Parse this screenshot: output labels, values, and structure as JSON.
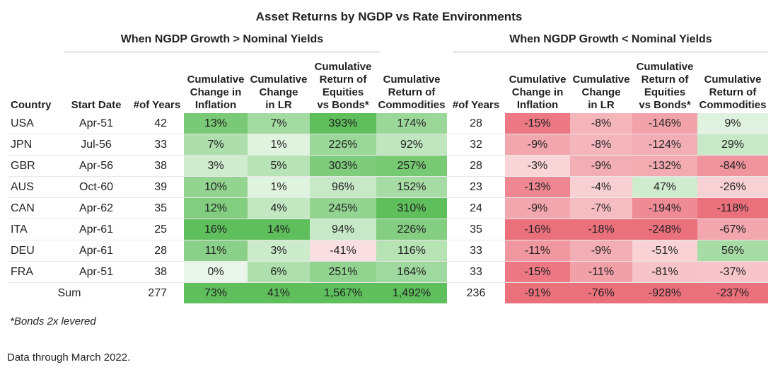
{
  "title": "Asset Returns by NGDP vs Rate Environments",
  "group_left": "When NGDP Growth > Nominal Yields",
  "group_right": "When NGDP Growth < Nominal Yields",
  "headers": {
    "country": "Country",
    "start_date": "Start Date",
    "years": "#of Years",
    "infl": [
      "Cumulative",
      "Change in",
      "Inflation"
    ],
    "lr": [
      "Cumulative",
      "Change",
      "in LR"
    ],
    "eq": [
      "Cumulative",
      "Return of",
      "Equities",
      "vs Bonds*"
    ],
    "comm": [
      "Cumulative",
      "Return of",
      "Commodities"
    ]
  },
  "palette": {
    "green": "#4db84a",
    "red": "#e8606d",
    "grid": "#e7e7e7"
  },
  "rows": [
    {
      "country": "USA",
      "start": "Apr-51",
      "y1": "42",
      "a": "13%",
      "b": "7%",
      "c": "393%",
      "d": "174%",
      "y2": "28",
      "e": "-15%",
      "f": "-8%",
      "g": "-146%",
      "h": "9%"
    },
    {
      "country": "JPN",
      "start": "Jul-56",
      "y1": "33",
      "a": "7%",
      "b": "1%",
      "c": "226%",
      "d": "92%",
      "y2": "32",
      "e": "-9%",
      "f": "-8%",
      "g": "-124%",
      "h": "29%"
    },
    {
      "country": "GBR",
      "start": "Apr-56",
      "y1": "38",
      "a": "3%",
      "b": "5%",
      "c": "303%",
      "d": "257%",
      "y2": "28",
      "e": "-3%",
      "f": "-9%",
      "g": "-132%",
      "h": "-84%"
    },
    {
      "country": "AUS",
      "start": "Oct-60",
      "y1": "39",
      "a": "10%",
      "b": "1%",
      "c": "96%",
      "d": "152%",
      "y2": "23",
      "e": "-13%",
      "f": "-4%",
      "g": "47%",
      "h": "-26%"
    },
    {
      "country": "CAN",
      "start": "Apr-62",
      "y1": "35",
      "a": "12%",
      "b": "4%",
      "c": "245%",
      "d": "310%",
      "y2": "24",
      "e": "-9%",
      "f": "-7%",
      "g": "-194%",
      "h": "-118%"
    },
    {
      "country": "ITA",
      "start": "Apr-61",
      "y1": "25",
      "a": "16%",
      "b": "14%",
      "c": "94%",
      "d": "226%",
      "y2": "35",
      "e": "-16%",
      "f": "-18%",
      "g": "-248%",
      "h": "-67%"
    },
    {
      "country": "DEU",
      "start": "Apr-61",
      "y1": "28",
      "a": "11%",
      "b": "3%",
      "c": "-41%",
      "d": "116%",
      "y2": "33",
      "e": "-11%",
      "f": "-9%",
      "g": "-51%",
      "h": "56%"
    },
    {
      "country": "FRA",
      "start": "Apr-51",
      "y1": "38",
      "a": "0%",
      "b": "6%",
      "c": "251%",
      "d": "164%",
      "y2": "33",
      "e": "-15%",
      "f": "-11%",
      "g": "-81%",
      "h": "-37%"
    }
  ],
  "sum": {
    "label": "Sum",
    "y1": "277",
    "a": "73%",
    "b": "41%",
    "c": "1,567%",
    "d": "1,492%",
    "y2": "236",
    "e": "-91%",
    "f": "-76%",
    "g": "-928%",
    "h": "-237%"
  },
  "footnote": "*Bonds 2x levered",
  "source": "Data through March 2022."
}
